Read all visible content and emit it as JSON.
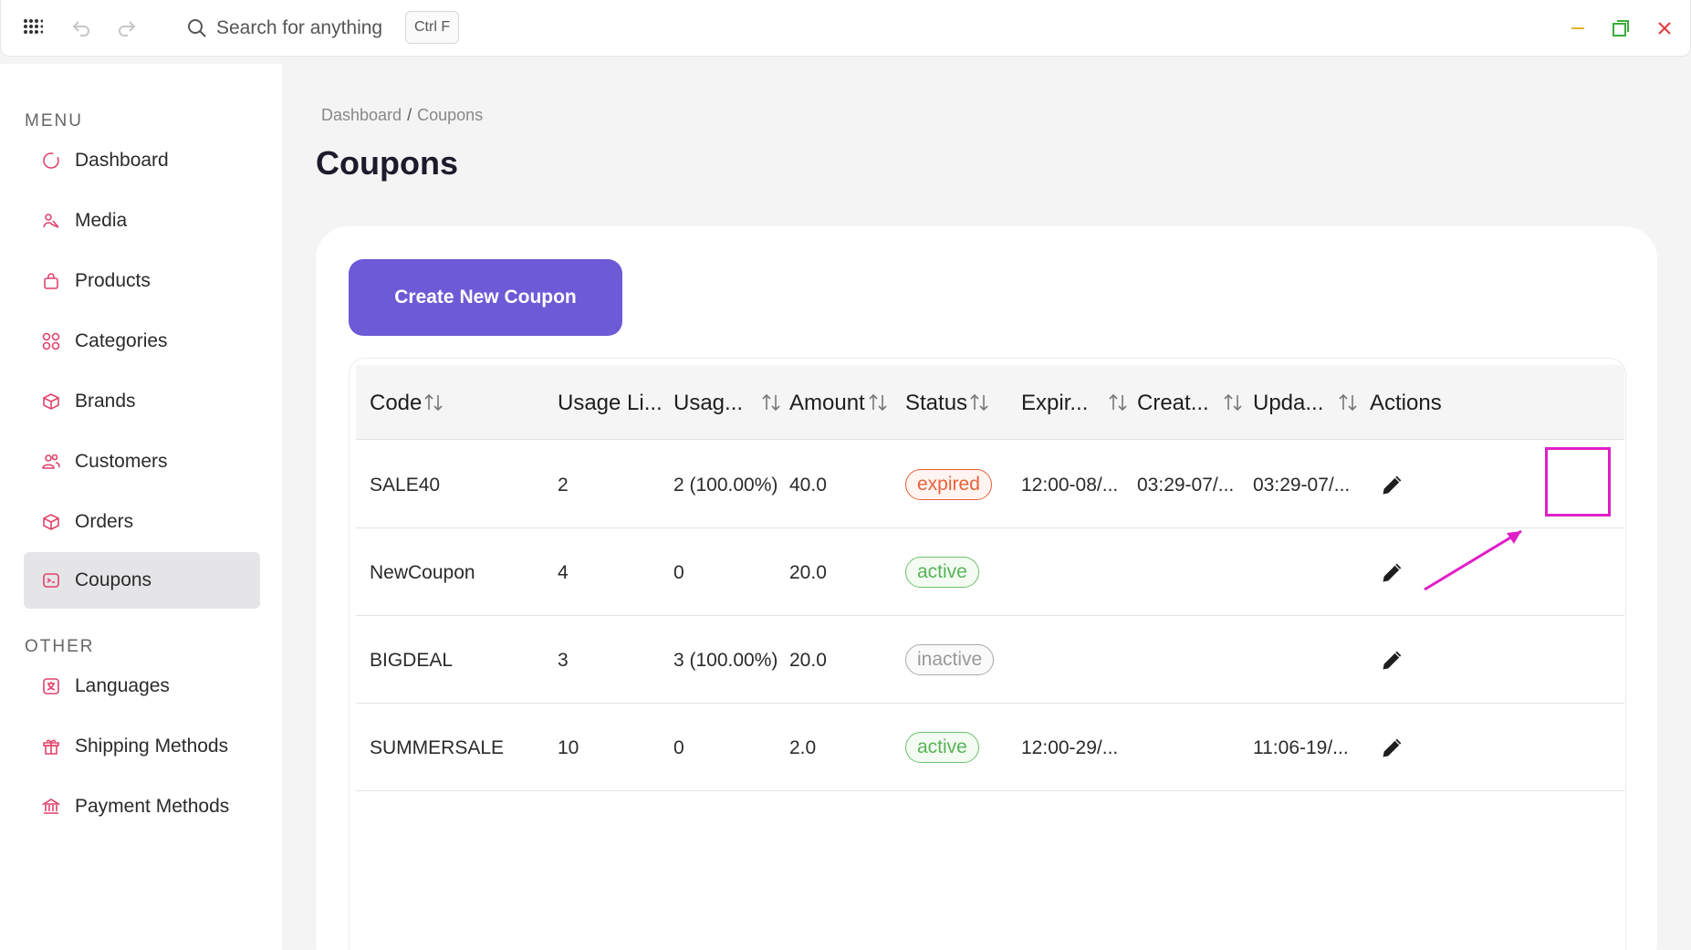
{
  "topbar": {
    "search_placeholder": "Search for anything",
    "shortcut": "Ctrl F"
  },
  "sidebar": {
    "menu_label": "MENU",
    "other_label": "OTHER",
    "menu_items": [
      {
        "label": "Dashboard",
        "icon": "dashboard-icon"
      },
      {
        "label": "Media",
        "icon": "media-icon"
      },
      {
        "label": "Products",
        "icon": "products-icon"
      },
      {
        "label": "Categories",
        "icon": "categories-icon"
      },
      {
        "label": "Brands",
        "icon": "brands-icon"
      },
      {
        "label": "Customers",
        "icon": "customers-icon"
      },
      {
        "label": "Orders",
        "icon": "orders-icon"
      },
      {
        "label": "Coupons",
        "icon": "coupons-icon",
        "active": true
      }
    ],
    "other_items": [
      {
        "label": "Languages",
        "icon": "languages-icon"
      },
      {
        "label": "Shipping Methods",
        "icon": "shipping-icon"
      },
      {
        "label": "Payment Methods",
        "icon": "payment-icon"
      }
    ]
  },
  "breadcrumb": {
    "root": "Dashboard",
    "separator": "/",
    "current": "Coupons"
  },
  "page": {
    "title": "Coupons",
    "create_button": "Create New Coupon"
  },
  "table": {
    "columns": [
      "Code",
      "Usage Li...",
      "Usag...",
      "Amount",
      "Status",
      "Expir...",
      "Creat...",
      "Upda...",
      "Actions"
    ],
    "rows": [
      {
        "code": "SALE40",
        "usage_limit": "2",
        "usage": "2 (100.00%)",
        "amount": "40.0",
        "status": "expired",
        "expires": "12:00-08/...",
        "created": "03:29-07/...",
        "updated": "03:29-07/..."
      },
      {
        "code": "NewCoupon",
        "usage_limit": "4",
        "usage": "0",
        "amount": "20.0",
        "status": "active",
        "expires": "",
        "created": "",
        "updated": ""
      },
      {
        "code": "BIGDEAL",
        "usage_limit": "3",
        "usage": "3 (100.00%)",
        "amount": "20.0",
        "status": "inactive",
        "expires": "",
        "created": "",
        "updated": ""
      },
      {
        "code": "SUMMERSALE",
        "usage_limit": "10",
        "usage": "0",
        "amount": "2.0",
        "status": "active",
        "expires": "12:00-29/...",
        "created": "",
        "updated": "11:06-19/..."
      }
    ]
  },
  "colors": {
    "primary": "#6d5ad6",
    "annotation": "#e01fc7",
    "expired": "#e8613c",
    "active": "#59b35a",
    "inactive": "#999999"
  }
}
